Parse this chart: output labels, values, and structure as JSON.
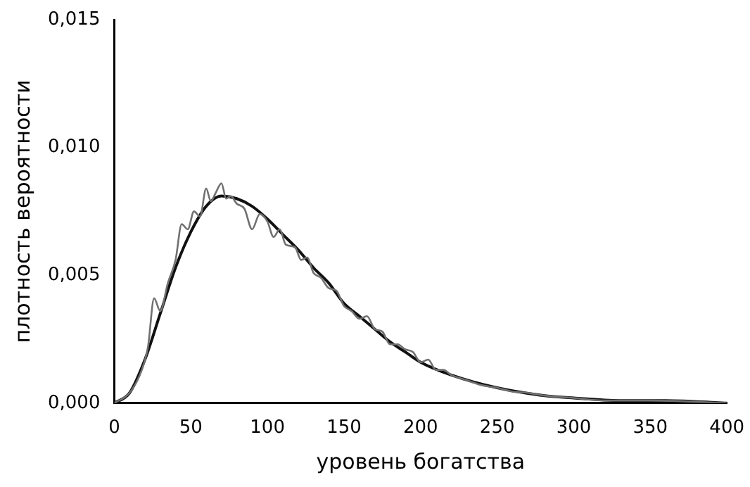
{
  "chart_data": {
    "type": "line",
    "xlabel": "уровень богатства",
    "ylabel": "плотность вероятности",
    "xlim": [
      0,
      400
    ],
    "xticks": [
      0,
      50,
      100,
      150,
      200,
      250,
      300,
      350,
      400
    ],
    "ylim": [
      0,
      0.015
    ],
    "yticks": [
      {
        "value": 0,
        "label": "0,000"
      },
      {
        "value": 0.005,
        "label": "0,005"
      },
      {
        "value": 0.01,
        "label": "0,010"
      },
      {
        "value": 0.015,
        "label": "0,015"
      }
    ],
    "grid": false,
    "legend": false,
    "marker": "none",
    "line_style": "solid",
    "series": [
      {
        "color": "#707070",
        "x": [
          0,
          10,
          18,
          22,
          26,
          30,
          35,
          40,
          44,
          48,
          52,
          56,
          60,
          63,
          66,
          70,
          73,
          76,
          80,
          85,
          90,
          95,
          100,
          104,
          108,
          112,
          118,
          122,
          126,
          130,
          135,
          140,
          145,
          150,
          155,
          160,
          165,
          170,
          175,
          180,
          185,
          190,
          195,
          200,
          205,
          210,
          215,
          220,
          230,
          240,
          250,
          260,
          270,
          280,
          300,
          320,
          350,
          400
        ],
        "values": [
          0,
          0.0004,
          0.0013,
          0.0022,
          0.0041,
          0.0036,
          0.0047,
          0.0056,
          0.007,
          0.0068,
          0.0075,
          0.0073,
          0.0084,
          0.0079,
          0.0082,
          0.0086,
          0.008,
          0.0081,
          0.0078,
          0.0076,
          0.0068,
          0.0074,
          0.0071,
          0.0065,
          0.0068,
          0.0062,
          0.0061,
          0.0056,
          0.0057,
          0.0051,
          0.0049,
          0.0045,
          0.0044,
          0.0038,
          0.0036,
          0.0033,
          0.0034,
          0.0029,
          0.0028,
          0.0023,
          0.0023,
          0.0021,
          0.002,
          0.0016,
          0.0017,
          0.0013,
          0.0013,
          0.0011,
          0.0009,
          0.0007,
          0.0006,
          0.00045,
          0.0004,
          0.0003,
          0.0002,
          0.0001,
          0.0001,
          0
        ]
      },
      {
        "color": "#111111",
        "x": [
          0,
          10,
          20,
          30,
          40,
          50,
          60,
          70,
          80,
          90,
          100,
          110,
          120,
          130,
          140,
          150,
          160,
          170,
          180,
          190,
          200,
          220,
          250,
          280,
          300,
          330,
          360,
          400
        ],
        "values": [
          0,
          0.0004,
          0.0017,
          0.0035,
          0.0053,
          0.0067,
          0.0077,
          0.0081,
          0.008,
          0.0077,
          0.0072,
          0.0066,
          0.006,
          0.0053,
          0.0047,
          0.0039,
          0.0034,
          0.0029,
          0.0024,
          0.002,
          0.0016,
          0.0011,
          0.0006,
          0.0003,
          0.0002,
          0.0001,
          0.0001,
          0
        ]
      }
    ]
  }
}
